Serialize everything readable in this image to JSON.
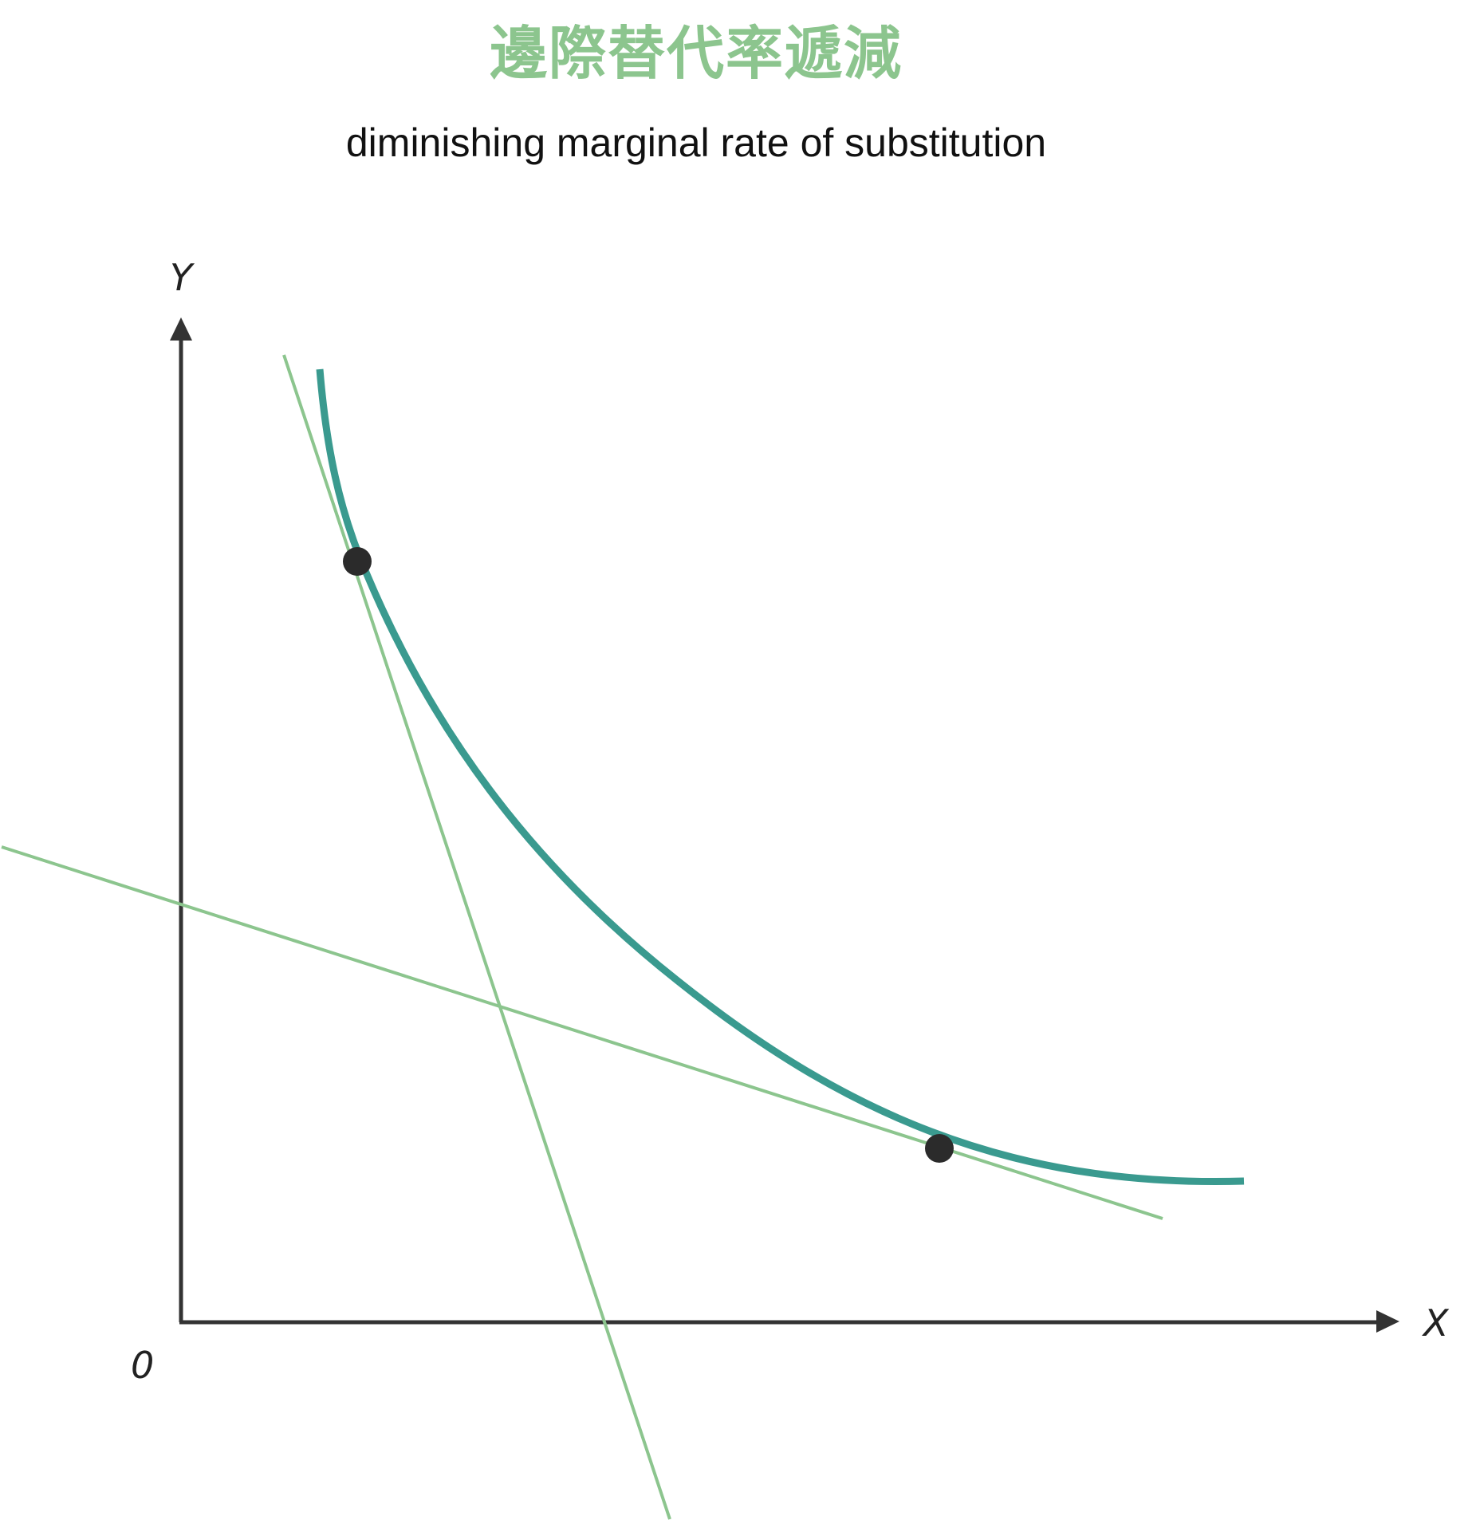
{
  "title": "邊際替代率遞減",
  "subtitle": "diminishing marginal rate of substitution",
  "axes": {
    "y_label": "Y",
    "x_label": "X",
    "origin_label": "0"
  },
  "colors": {
    "title": "#8cc58e",
    "curve": "#3a9a8f",
    "tangent": "#8cc58e",
    "axis": "#333333",
    "point": "#2b2b2b"
  },
  "diagram": {
    "curve": "indifference-curve",
    "tangent_lines": 2,
    "tangent_points": 2
  }
}
